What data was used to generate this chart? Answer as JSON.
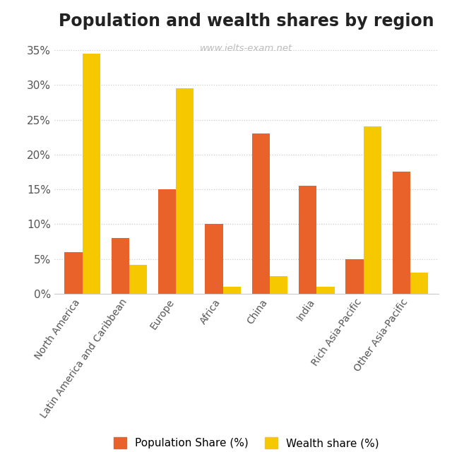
{
  "title": "Population and wealth shares by region",
  "watermark": "www.ielts-exam.net",
  "categories": [
    "North America",
    "Latin America and Caribbean",
    "Europe",
    "Africa",
    "China",
    "India",
    "Rich Asia-Pacific",
    "Other Asia-Pacific"
  ],
  "population_share": [
    6,
    8,
    15,
    10,
    23,
    15.5,
    5,
    17.5
  ],
  "wealth_share": [
    34.5,
    4.2,
    29.5,
    1.0,
    2.5,
    1.0,
    24,
    3.0
  ],
  "population_color": "#E8622A",
  "wealth_color": "#F5C800",
  "ylim": [
    0,
    37
  ],
  "yticks": [
    0,
    5,
    10,
    15,
    20,
    25,
    30,
    35
  ],
  "ytick_labels": [
    "0%",
    "5%",
    "10%",
    "15%",
    "20%",
    "25%",
    "30%",
    "35%"
  ],
  "background_color": "#ffffff",
  "title_fontsize": 17,
  "legend_labels": [
    "Population Share (%)",
    "Wealth share (%)"
  ],
  "bar_width": 0.38,
  "watermark_color": "#bbbbbb",
  "tick_label_color": "#555555",
  "grid_color": "#cccccc",
  "spine_color": "#cccccc"
}
